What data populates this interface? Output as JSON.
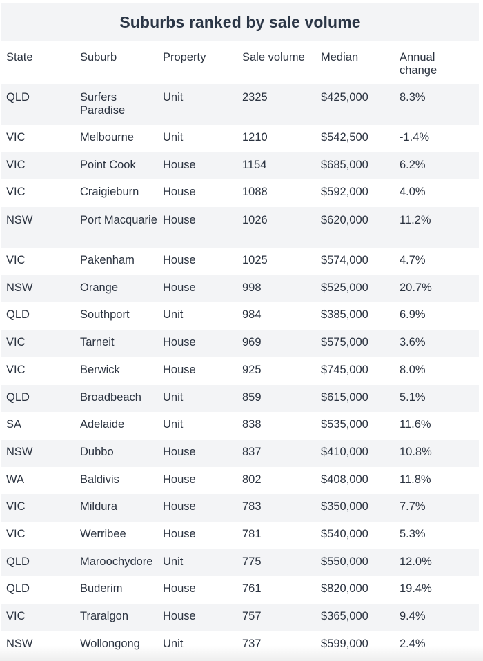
{
  "title": "Suburbs ranked by sale volume",
  "columns": [
    "State",
    "Suburb",
    "Property",
    "Sale volume",
    "Median",
    "Annual change"
  ],
  "rows": [
    [
      "QLD",
      "Surfers Paradise",
      "Unit",
      "2325",
      "$425,000",
      "8.3%"
    ],
    [
      "VIC",
      "Melbourne",
      "Unit",
      "1210",
      "$542,500",
      "-1.4%"
    ],
    [
      "VIC",
      "Point Cook",
      "House",
      "1154",
      "$685,000",
      "6.2%"
    ],
    [
      "VIC",
      "Craigieburn",
      "House",
      "1088",
      "$592,000",
      "4.0%"
    ],
    [
      "NSW",
      "Port Macquarie",
      "House",
      "1026",
      "$620,000",
      "11.2%"
    ],
    [
      "VIC",
      "Pakenham",
      "House",
      "1025",
      "$574,000",
      "4.7%"
    ],
    [
      "NSW",
      "Orange",
      "House",
      "998",
      "$525,000",
      "20.7%"
    ],
    [
      "QLD",
      "Southport",
      "Unit",
      "984",
      "$385,000",
      "6.9%"
    ],
    [
      "VIC",
      "Tarneit",
      "House",
      "969",
      "$575,000",
      "3.6%"
    ],
    [
      "VIC",
      "Berwick",
      "House",
      "925",
      "$745,000",
      "8.0%"
    ],
    [
      "QLD",
      "Broadbeach",
      "Unit",
      "859",
      "$615,000",
      "5.1%"
    ],
    [
      "SA",
      "Adelaide",
      "Unit",
      "838",
      "$535,000",
      "11.6%"
    ],
    [
      "NSW",
      "Dubbo",
      "House",
      "837",
      "$410,000",
      "10.8%"
    ],
    [
      "WA",
      "Baldivis",
      "House",
      "802",
      "$408,000",
      "11.8%"
    ],
    [
      "VIC",
      "Mildura",
      "House",
      "783",
      "$350,000",
      "7.7%"
    ],
    [
      "VIC",
      "Werribee",
      "House",
      "781",
      "$540,000",
      "5.3%"
    ],
    [
      "QLD",
      "Maroochydore",
      "Unit",
      "775",
      "$550,000",
      "12.0%"
    ],
    [
      "QLD",
      "Buderim",
      "House",
      "761",
      "$820,000",
      "19.4%"
    ],
    [
      "VIC",
      "Traralgon",
      "House",
      "757",
      "$365,000",
      "9.4%"
    ],
    [
      "NSW",
      "Wollongong",
      "Unit",
      "737",
      "$599,000",
      "2.4%"
    ]
  ]
}
